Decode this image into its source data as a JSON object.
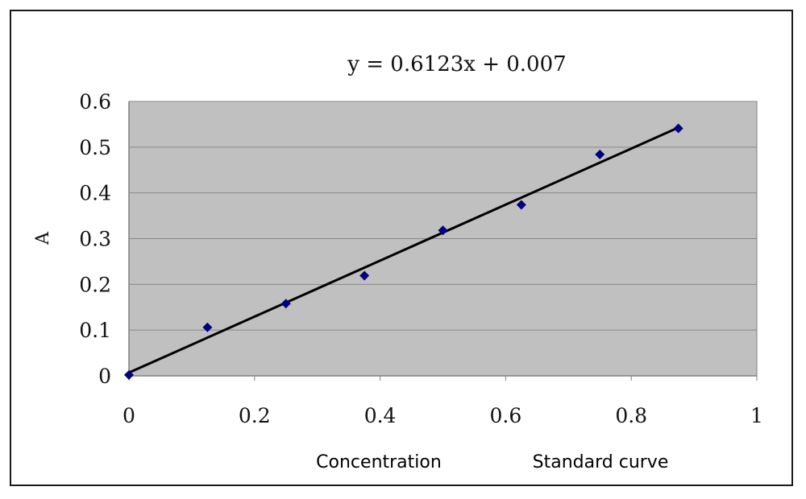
{
  "chart_data": {
    "type": "scatter",
    "title": "",
    "xlabel": "Concentration",
    "ylabel": "A",
    "caption": "Standard curve",
    "equation": "y = 0.6123x + 0.007",
    "xlim": [
      0,
      1
    ],
    "ylim": [
      0,
      0.6
    ],
    "x_ticks": [
      "0",
      "0.2",
      "0.4",
      "0.6",
      "0.8",
      "1"
    ],
    "y_ticks": [
      "0",
      "0.1",
      "0.2",
      "0.3",
      "0.4",
      "0.5",
      "0.6"
    ],
    "grid": "horizontal",
    "plot_background": "#c0c0c0",
    "marker_color": "#000080",
    "trendline": {
      "slope": 0.6123,
      "intercept": 0.007,
      "x_range": [
        0,
        0.875
      ],
      "color": "#000000"
    },
    "series": [
      {
        "x": [
          0,
          0.125,
          0.25,
          0.375,
          0.5,
          0.625,
          0.75,
          0.875
        ],
        "y": [
          0.002,
          0.106,
          0.158,
          0.219,
          0.318,
          0.374,
          0.484,
          0.541
        ]
      }
    ]
  }
}
